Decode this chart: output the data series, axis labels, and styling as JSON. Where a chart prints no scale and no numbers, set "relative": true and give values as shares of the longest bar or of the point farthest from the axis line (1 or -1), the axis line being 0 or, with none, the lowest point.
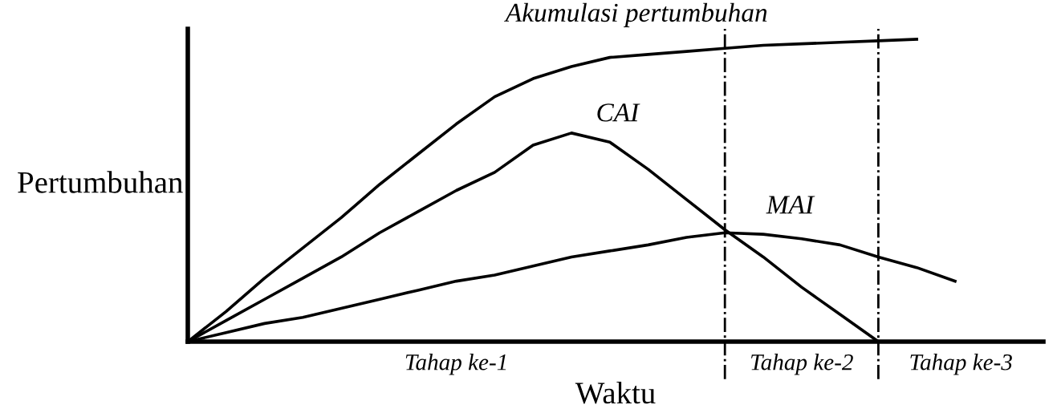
{
  "chart_data": {
    "type": "line",
    "relative": true,
    "xlabel": "Waktu",
    "ylabel": "Pertumbuhan",
    "marker": "none",
    "line_style": "solid",
    "legend": false,
    "categories": [
      null,
      null,
      null,
      null,
      null,
      null,
      null,
      null,
      null,
      null,
      null,
      null,
      null,
      null,
      null,
      null,
      null,
      null,
      null,
      null,
      null
    ],
    "series": [
      {
        "name": "Akumulasi pertumbuhan",
        "color": "#000000",
        "values": [
          0,
          0.1,
          0.21,
          0.31,
          0.41,
          0.52,
          0.62,
          0.72,
          0.81,
          0.87,
          0.91,
          0.94,
          0.95,
          0.96,
          0.97,
          0.98,
          0.985,
          0.99,
          0.995,
          1.0,
          null
        ]
      },
      {
        "name": "CAI",
        "color": "#000000",
        "values": [
          0,
          0.07,
          0.14,
          0.21,
          0.28,
          0.36,
          0.43,
          0.5,
          0.56,
          0.65,
          0.69,
          0.66,
          0.57,
          0.47,
          0.37,
          0.28,
          0.18,
          0.09,
          0,
          null,
          null
        ]
      },
      {
        "name": "MAI",
        "color": "#000000",
        "values": [
          0,
          0.03,
          0.06,
          0.08,
          0.11,
          0.14,
          0.17,
          0.2,
          0.22,
          0.25,
          0.28,
          0.3,
          0.32,
          0.345,
          0.36,
          0.355,
          0.34,
          0.32,
          0.28,
          0.245,
          0.2
        ]
      }
    ],
    "annotations": [
      "Tahap ke-1",
      "Tahap ke-2",
      "Tahap ke-3"
    ]
  }
}
